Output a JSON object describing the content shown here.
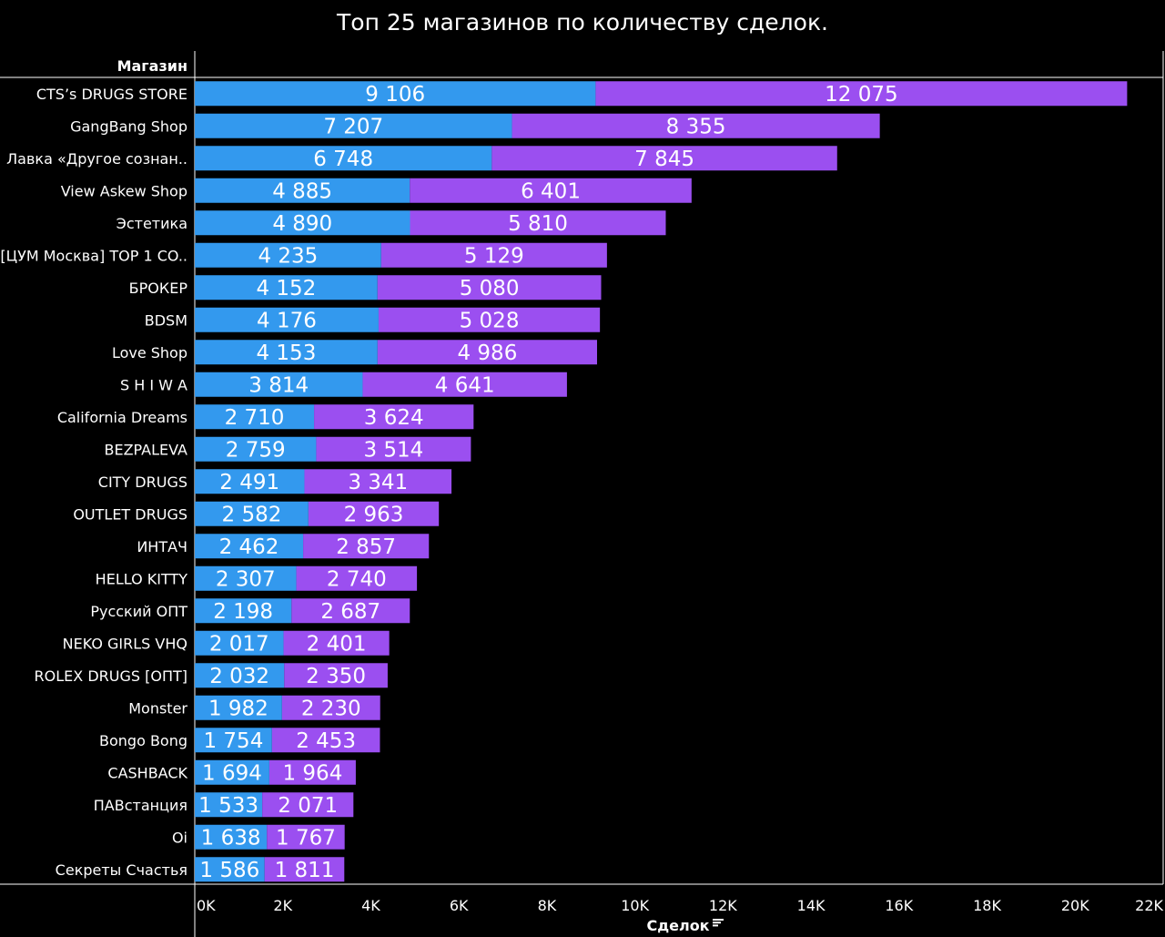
{
  "title": "Топ 25 магазинов по количеству сделок.",
  "row_header": "Магазин",
  "chart_data": {
    "type": "bar",
    "orientation": "horizontal",
    "stacked": true,
    "title": "Топ 25 магазинов по количеству сделок.",
    "ylabel": "Магазин",
    "xlabel": "Сделок",
    "xlim": [
      0,
      22000
    ],
    "x_ticks": [
      "0K",
      "2K",
      "4K",
      "6K",
      "8K",
      "10K",
      "12K",
      "14K",
      "16K",
      "18K",
      "20K",
      "22K"
    ],
    "categories": [
      "CTS’s DRUGS STORE",
      "GangBang Shop",
      "Лавка «Другое сознан..",
      "View Askew Shop",
      "Эстетика",
      "[ЦУМ Москва] TOP 1 CO..",
      "БРОКЕР",
      "BDSM",
      "Love Shop",
      "S H I W A",
      "California Dreams",
      "BEZPALEVA",
      "CITY DRUGS",
      "OUTLET DRUGS",
      "ИНТАЧ",
      "HELLO KITTY",
      "Русский ОПТ",
      "NEKO GIRLS VHQ",
      "ROLEX DRUGS [ОПТ]",
      "Monster",
      "Bongo Bong",
      "CASHBACK",
      "ПАВстанция",
      "Oi",
      "Секреты Счастья"
    ],
    "series": [
      {
        "color": "#3399EE",
        "values": [
          9106,
          7207,
          6748,
          4885,
          4890,
          4235,
          4152,
          4176,
          4153,
          3814,
          2710,
          2759,
          2491,
          2582,
          2462,
          2307,
          2198,
          2017,
          2032,
          1982,
          1754,
          1694,
          1533,
          1638,
          1586
        ],
        "labels": [
          "9 106",
          "7 207",
          "6 748",
          "4 885",
          "4 890",
          "4 235",
          "4 152",
          "4 176",
          "4 153",
          "3 814",
          "2 710",
          "2 759",
          "2 491",
          "2 582",
          "2 462",
          "2 307",
          "2 198",
          "2 017",
          "2 032",
          "1 982",
          "1 754",
          "1 694",
          "1 533",
          "1 638",
          "1 586"
        ]
      },
      {
        "color": "#9B4FF0",
        "values": [
          12075,
          8355,
          7845,
          6401,
          5810,
          5129,
          5080,
          5028,
          4986,
          4641,
          3624,
          3514,
          3341,
          2963,
          2857,
          2740,
          2687,
          2401,
          2350,
          2230,
          2453,
          1964,
          2071,
          1767,
          1811
        ],
        "labels": [
          "12 075",
          "8 355",
          "7 845",
          "6 401",
          "5 810",
          "5 129",
          "5 080",
          "5 028",
          "4 986",
          "4 641",
          "3 624",
          "3 514",
          "3 341",
          "2 963",
          "2 857",
          "2 740",
          "2 687",
          "2 401",
          "2 350",
          "2 230",
          "2 453",
          "1 964",
          "2 071",
          "1 767",
          "1 811"
        ]
      }
    ]
  }
}
